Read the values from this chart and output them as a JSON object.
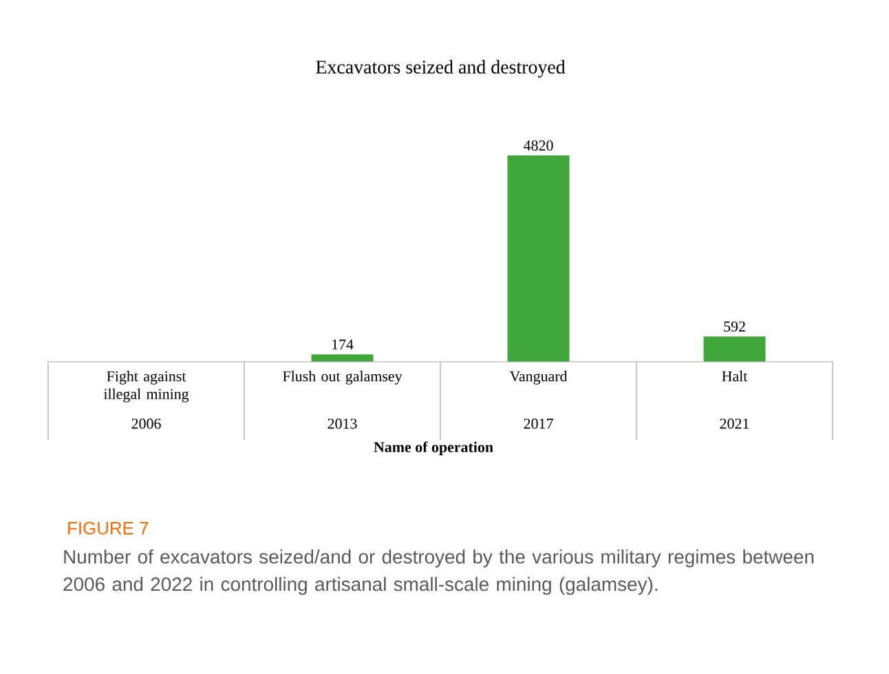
{
  "chart_data": {
    "type": "bar",
    "title": "Excavators seized and destroyed",
    "xlabel": "Name of operation",
    "categories": [
      "Fight against illegal mining",
      "Flush out galamsey",
      "Vanguard",
      "Halt"
    ],
    "values": [
      null,
      174,
      4820,
      592
    ],
    "color": "#41a73b",
    "data_labels": true,
    "annotations": [
      "2006",
      "2013",
      "2017",
      "2021",
      "FIGURE 7",
      "Number of excavators seized/and or destroyed by the various military regimes between 2006 and 2022 in controlling artisanal small-scale mining (galamsey)."
    ]
  }
}
